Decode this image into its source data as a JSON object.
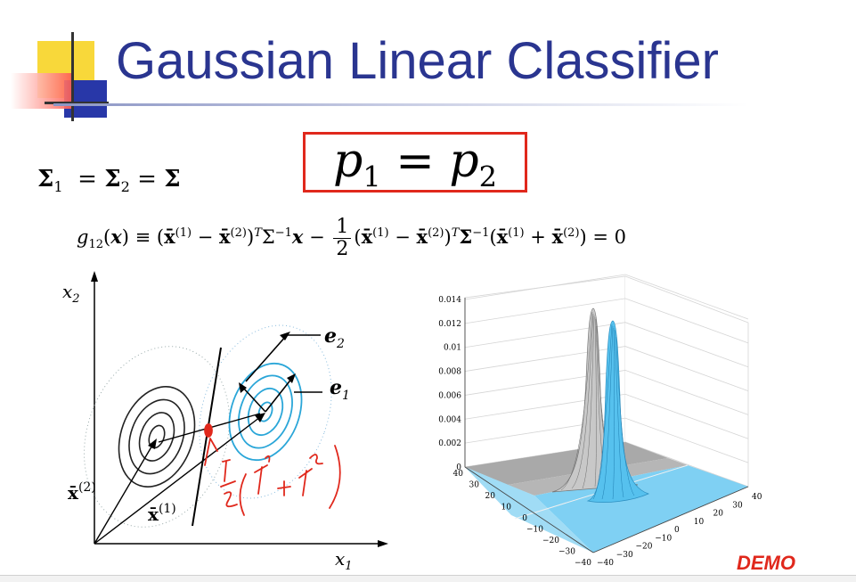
{
  "slide": {
    "title": "Gaussian Linear Classifier",
    "demo_label": "DEMO"
  },
  "equations": {
    "cov_lhs": "Σ",
    "p1": "p",
    "p2": "p",
    "p_sub1": "1",
    "p_sub2": "2",
    "g_sub": "12",
    "zero": "0"
  },
  "left_figure": {
    "x_axis_label": "x",
    "x_axis_sub": "1",
    "y_axis_label": "x",
    "y_axis_sub": "2",
    "mean2_label": "x̄",
    "mean2_sup": "(2)",
    "mean1_label": "x̄",
    "mean1_sup": "(1)",
    "e1_label": "e",
    "e1_sub": "1",
    "e2_label": "e",
    "e2_sub": "2",
    "colors": {
      "class1": "#2aa6d8",
      "class2": "#222222",
      "annotation": "#e0281c"
    }
  },
  "chart_data": {
    "type": "surface",
    "z_ticks": [
      "0",
      "0.002",
      "0.004",
      "0.006",
      "0.008",
      "0.01",
      "0.012",
      "0.014"
    ],
    "x_ticks": [
      "−40",
      "−30",
      "−20",
      "−10",
      "0",
      "10",
      "20",
      "30",
      "40"
    ],
    "y_ticks": [
      "−40",
      "−30",
      "−20",
      "−10",
      "0",
      "10",
      "20",
      "30",
      "40"
    ],
    "zlim": [
      0,
      0.014
    ],
    "xlim": [
      -40,
      40
    ],
    "ylim": [
      -40,
      40
    ],
    "series": [
      {
        "color": "#888888",
        "peak": 0.012
      },
      {
        "color": "#4fc3ee",
        "peak": 0.011
      }
    ]
  }
}
